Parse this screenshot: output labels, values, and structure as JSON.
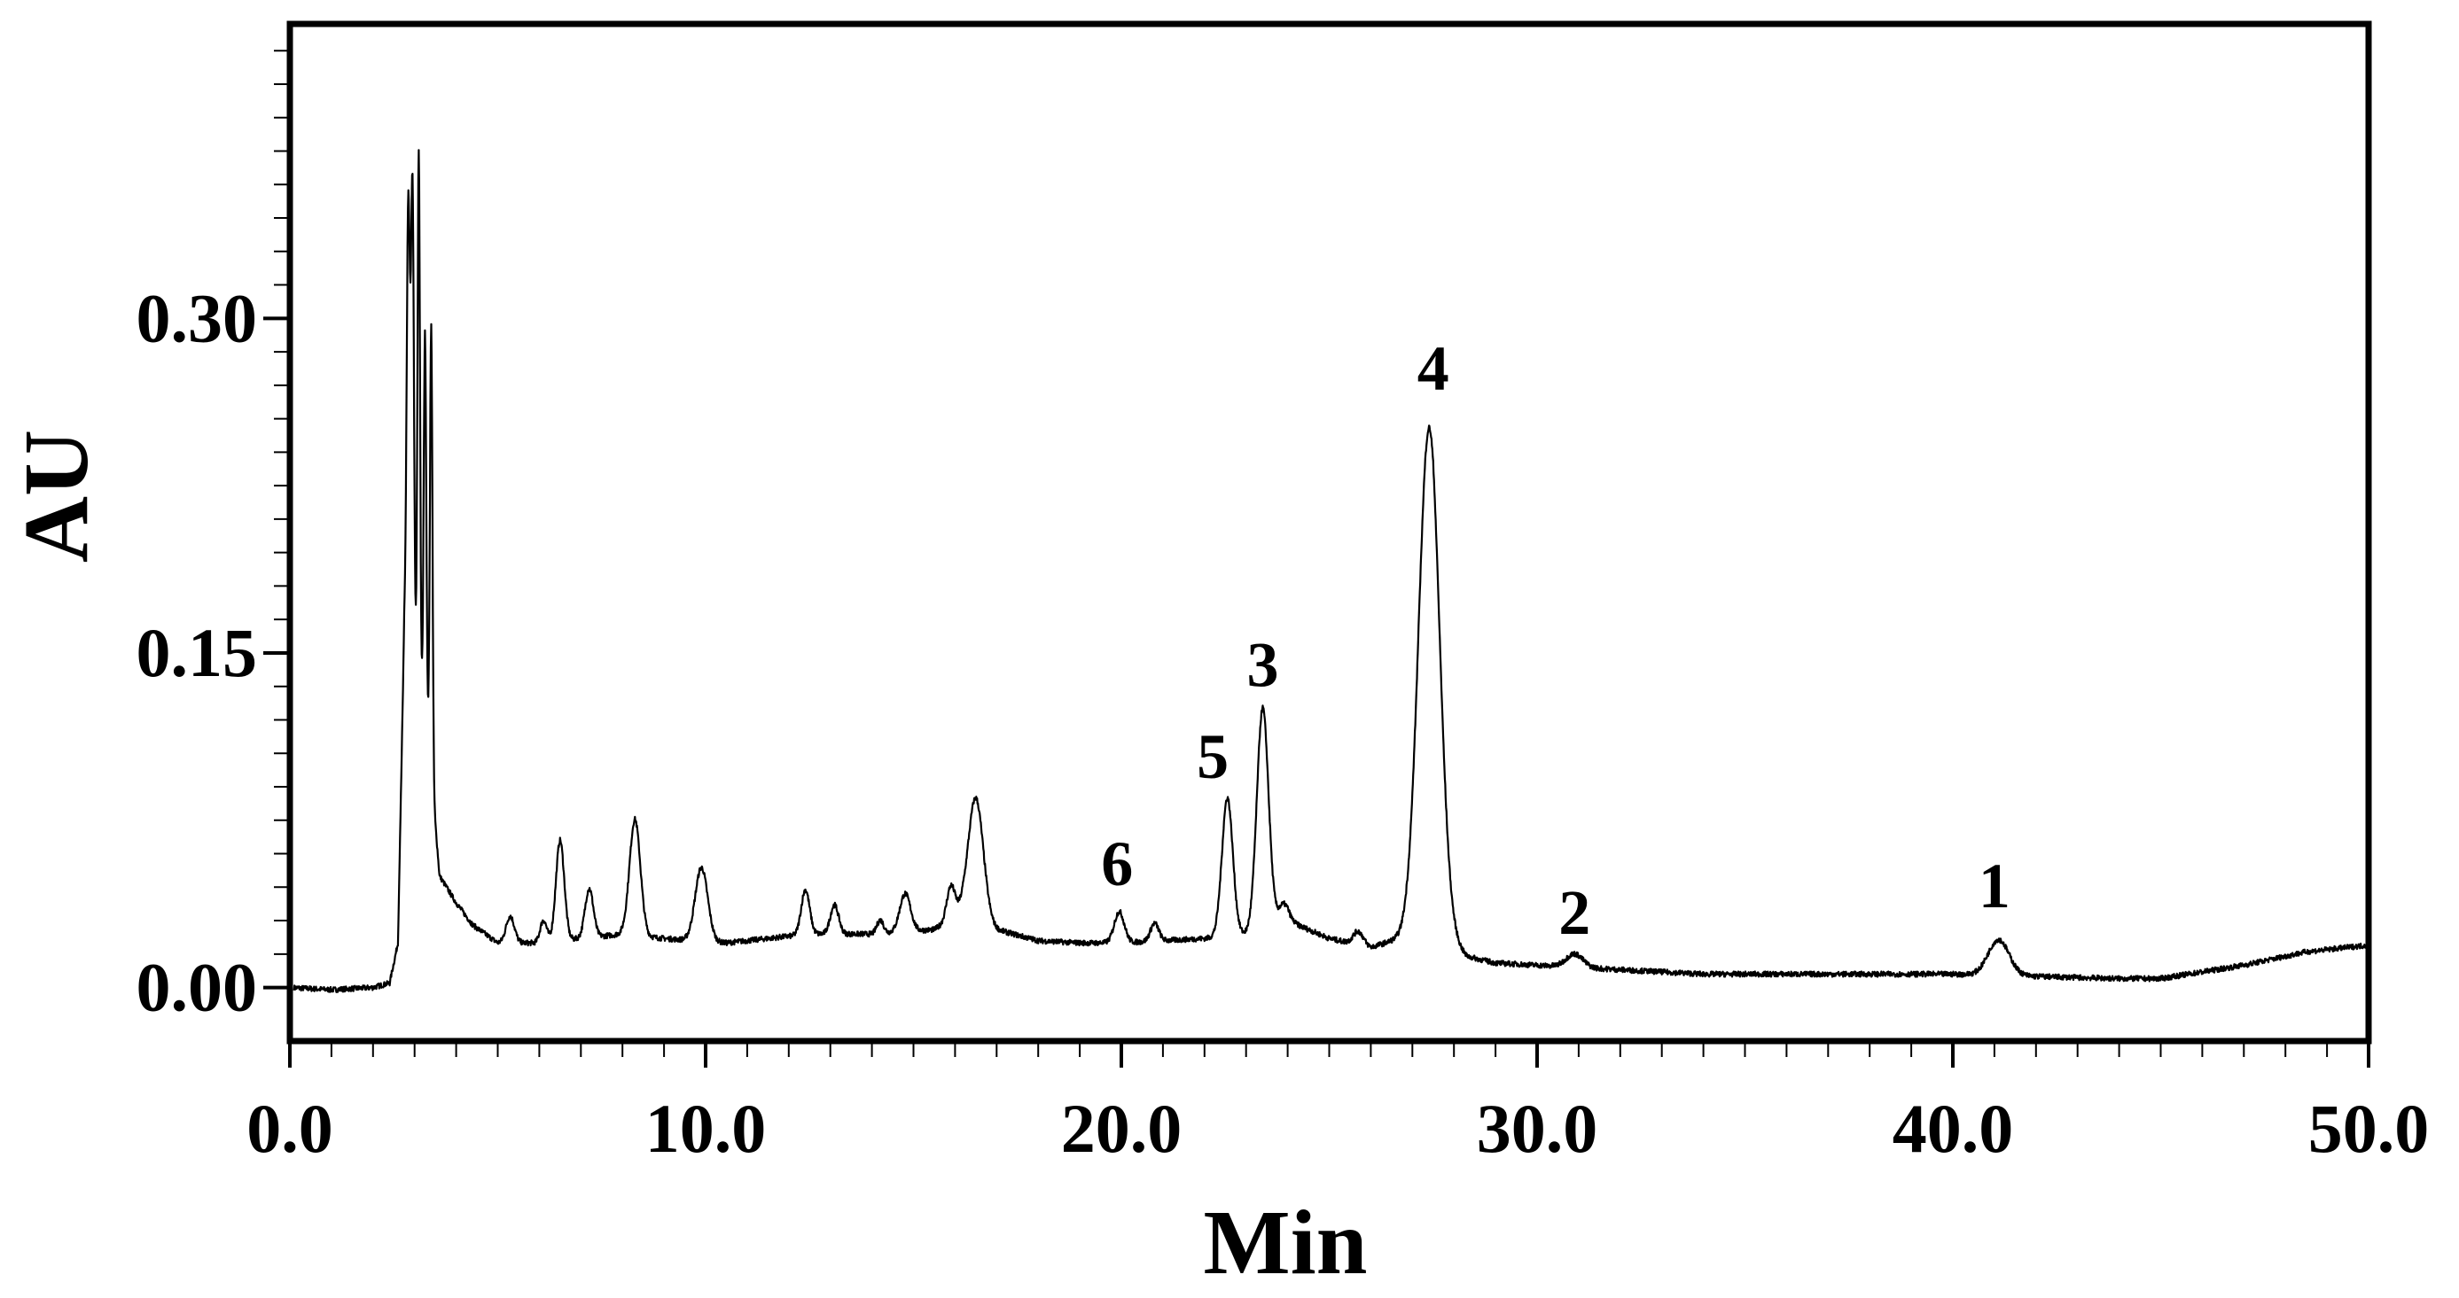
{
  "chart_data": {
    "type": "line",
    "title": "",
    "xlabel": "Min",
    "ylabel": "AU",
    "xlim": [
      0,
      50
    ],
    "ylim": [
      -0.024,
      0.432
    ],
    "x_ticks": [
      {
        "value": 0,
        "label": "0.0"
      },
      {
        "value": 10,
        "label": "10.0"
      },
      {
        "value": 20,
        "label": "20.0"
      },
      {
        "value": 30,
        "label": "30.0"
      },
      {
        "value": 40,
        "label": "40.0"
      },
      {
        "value": 50,
        "label": "50.0"
      }
    ],
    "y_ticks": [
      {
        "value": 0.0,
        "label": "0.00"
      },
      {
        "value": 0.15,
        "label": "0.15"
      },
      {
        "value": 0.3,
        "label": "0.30"
      }
    ],
    "x_minor_step": 1,
    "y_minor_step": 0.015,
    "grid": false,
    "legend": "none",
    "line_color": "#000000",
    "baseline": [
      [
        0,
        0.0
      ],
      [
        1,
        -0.001
      ],
      [
        2,
        0.0
      ],
      [
        2.4,
        0.002
      ],
      [
        2.6,
        0.02
      ],
      [
        2.75,
        0.16
      ],
      [
        3.3,
        0.12
      ],
      [
        3.6,
        0.05
      ],
      [
        4.0,
        0.038
      ],
      [
        4.4,
        0.028
      ],
      [
        5.0,
        0.02
      ],
      [
        6.0,
        0.02
      ],
      [
        7.0,
        0.022
      ],
      [
        8.0,
        0.024
      ],
      [
        9.0,
        0.022
      ],
      [
        10.5,
        0.02
      ],
      [
        11.5,
        0.022
      ],
      [
        12.5,
        0.024
      ],
      [
        14.0,
        0.024
      ],
      [
        15.5,
        0.026
      ],
      [
        16.2,
        0.034
      ],
      [
        17.0,
        0.026
      ],
      [
        18.0,
        0.021
      ],
      [
        19.0,
        0.02
      ],
      [
        20.0,
        0.02
      ],
      [
        21.0,
        0.021
      ],
      [
        22.0,
        0.022
      ],
      [
        23.0,
        0.024
      ],
      [
        24.0,
        0.03
      ],
      [
        25.0,
        0.022
      ],
      [
        26.0,
        0.018
      ],
      [
        26.7,
        0.022
      ],
      [
        27.5,
        0.03
      ],
      [
        28.3,
        0.014
      ],
      [
        29.0,
        0.011
      ],
      [
        30.0,
        0.01
      ],
      [
        32.0,
        0.008
      ],
      [
        34.0,
        0.006
      ],
      [
        36.0,
        0.006
      ],
      [
        38.0,
        0.006
      ],
      [
        40.0,
        0.006
      ],
      [
        42.0,
        0.005
      ],
      [
        44.0,
        0.004
      ],
      [
        45.0,
        0.004
      ],
      [
        47.0,
        0.01
      ],
      [
        48.5,
        0.016
      ],
      [
        50.0,
        0.019
      ]
    ],
    "peaks": [
      {
        "rt": 2.85,
        "height": 0.2,
        "width": 0.04
      },
      {
        "rt": 2.95,
        "height": 0.21,
        "width": 0.035
      },
      {
        "rt": 3.1,
        "height": 0.24,
        "width": 0.03
      },
      {
        "rt": 3.25,
        "height": 0.17,
        "width": 0.03
      },
      {
        "rt": 3.4,
        "height": 0.2,
        "width": 0.03
      },
      {
        "rt": 5.3,
        "height": 0.012,
        "width": 0.1
      },
      {
        "rt": 6.1,
        "height": 0.01,
        "width": 0.08
      },
      {
        "rt": 6.5,
        "height": 0.045,
        "width": 0.1
      },
      {
        "rt": 7.2,
        "height": 0.022,
        "width": 0.1
      },
      {
        "rt": 8.3,
        "height": 0.052,
        "width": 0.13
      },
      {
        "rt": 9.9,
        "height": 0.033,
        "width": 0.15
      },
      {
        "rt": 12.4,
        "height": 0.02,
        "width": 0.1
      },
      {
        "rt": 13.1,
        "height": 0.013,
        "width": 0.1
      },
      {
        "rt": 14.2,
        "height": 0.006,
        "width": 0.08
      },
      {
        "rt": 14.8,
        "height": 0.017,
        "width": 0.13
      },
      {
        "rt": 15.9,
        "height": 0.015,
        "width": 0.1
      },
      {
        "rt": 16.5,
        "height": 0.054,
        "width": 0.18
      },
      {
        "rt": 19.95,
        "height": 0.014,
        "width": 0.12
      },
      {
        "rt": 20.8,
        "height": 0.008,
        "width": 0.1
      },
      {
        "rt": 22.55,
        "height": 0.062,
        "width": 0.13
      },
      {
        "rt": 23.4,
        "height": 0.099,
        "width": 0.14
      },
      {
        "rt": 23.9,
        "height": 0.008,
        "width": 0.12
      },
      {
        "rt": 25.7,
        "height": 0.006,
        "width": 0.12
      },
      {
        "rt": 27.4,
        "height": 0.222,
        "width": 0.25
      },
      {
        "rt": 30.9,
        "height": 0.006,
        "width": 0.2
      },
      {
        "rt": 41.1,
        "height": 0.016,
        "width": 0.25
      }
    ],
    "noise_amplitude": 0.0012,
    "annotations": [
      {
        "label": "1",
        "x": 41.0,
        "y": 0.036
      },
      {
        "label": "2",
        "x": 30.9,
        "y": 0.024
      },
      {
        "label": "3",
        "x": 23.4,
        "y": 0.135
      },
      {
        "label": "4",
        "x": 27.5,
        "y": 0.268
      },
      {
        "label": "5",
        "x": 22.2,
        "y": 0.094
      },
      {
        "label": "6",
        "x": 19.9,
        "y": 0.046
      }
    ]
  }
}
